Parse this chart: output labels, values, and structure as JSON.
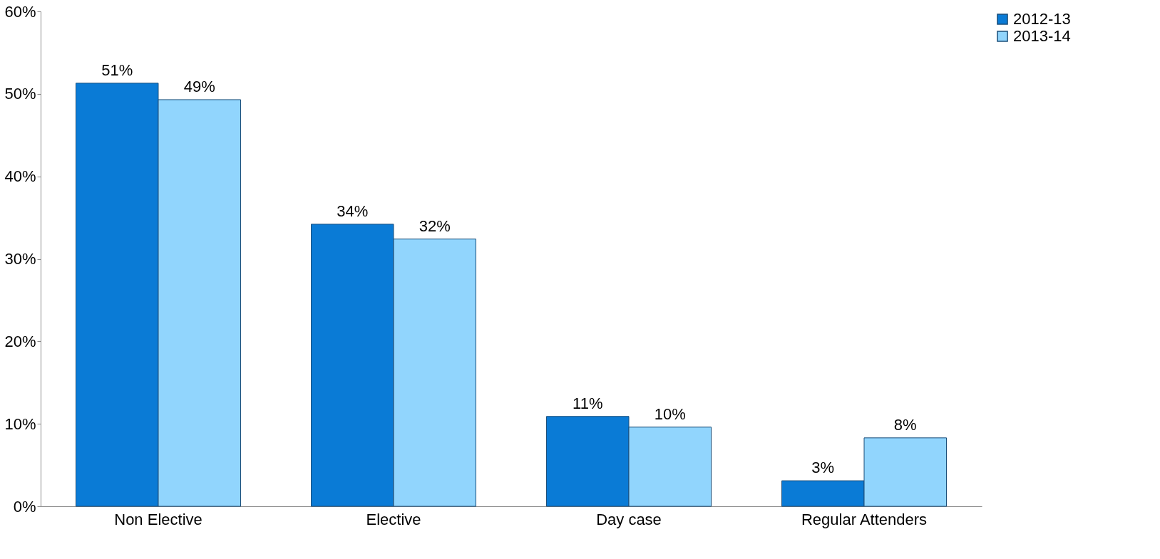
{
  "chart_data": {
    "type": "bar",
    "categories": [
      "Non Elective",
      "Elective",
      "Day case",
      "Regular Attenders"
    ],
    "series": [
      {
        "name": "2012-13",
        "color": "#0a7bd6",
        "values": [
          51.3,
          34.2,
          10.9,
          3.1
        ],
        "value_labels": [
          "51%",
          "34%",
          "11%",
          "3%"
        ]
      },
      {
        "name": "2013-14",
        "color": "#91d5fd",
        "values": [
          49.3,
          32.4,
          9.6,
          8.3
        ],
        "value_labels": [
          "49%",
          "32%",
          "10%",
          "8%"
        ]
      }
    ],
    "ylim": [
      0,
      60
    ],
    "yticks": [
      {
        "value": 0,
        "label": "0%"
      },
      {
        "value": 10,
        "label": "10%"
      },
      {
        "value": 20,
        "label": "20%"
      },
      {
        "value": 30,
        "label": "30%"
      },
      {
        "value": 40,
        "label": "40%"
      },
      {
        "value": 50,
        "label": "50%"
      },
      {
        "value": 60,
        "label": "60%"
      }
    ],
    "grid": false,
    "legend": "right"
  }
}
